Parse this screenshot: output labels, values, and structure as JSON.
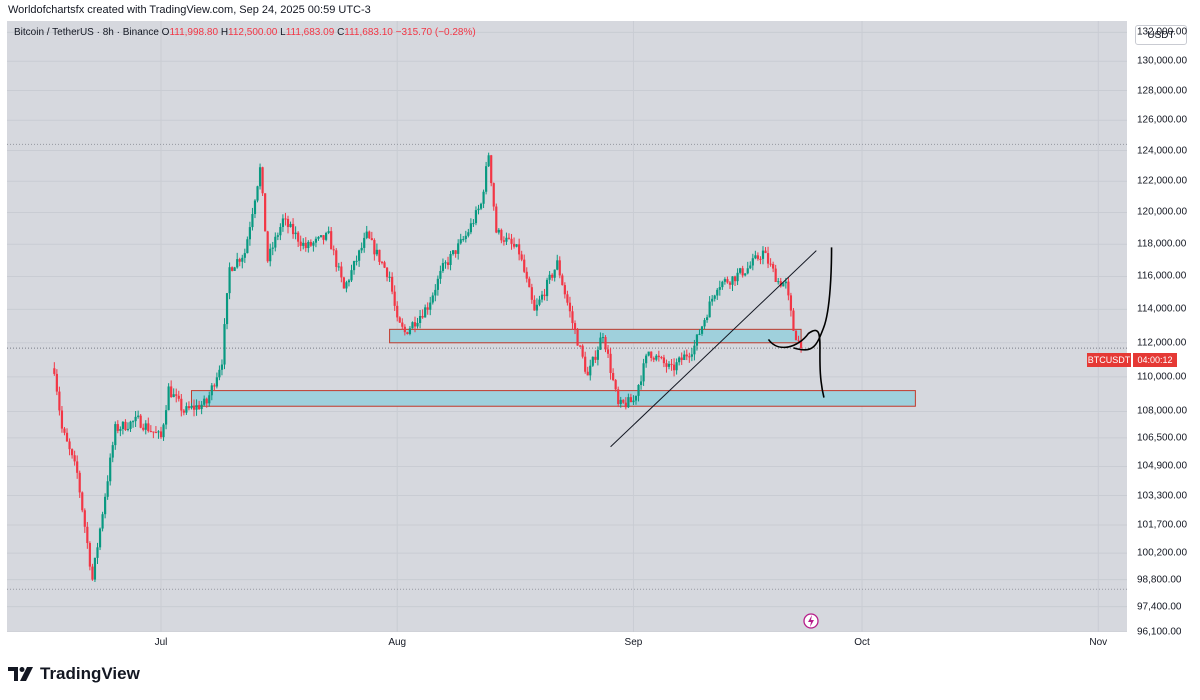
{
  "caption": "Worldofchartsfx created with TradingView.com, Sep 24, 2025 00:59 UTC-3",
  "legend": {
    "symbol": "Bitcoin / TetherUS · 8h · Binance",
    "o_label": "O",
    "o_value": "111,998.80",
    "h_label": "H",
    "h_value": "112,500.00",
    "l_label": "L",
    "l_value": "111,683.09",
    "c_label": "C",
    "c_value": "111,683.10",
    "change": "−315.70 (−0.28%)"
  },
  "currency_button": "USDT",
  "price_tag": {
    "symbol": "BTCUSDT",
    "countdown": "04:00:12"
  },
  "footer_brand": "TradingView",
  "colors": {
    "up": "#089981",
    "down": "#f23645",
    "zone_fill": "#9fd0dc",
    "zone_border": "#c0392b",
    "background": "#d6d8de"
  },
  "chart_data": {
    "type": "candlestick",
    "symbol": "BTCUSDT",
    "y_ticks": [
      "132,000.00",
      "130,000.00",
      "128,000.00",
      "126,000.00",
      "124,000.00",
      "122,000.00",
      "120,000.00",
      "118,000.00",
      "116,000.00",
      "114,000.00",
      "112,000.00",
      "110,000.00",
      "108,000.00",
      "106,500.00",
      "104,900.00",
      "103,300.00",
      "101,700.00",
      "100,200.00",
      "98,800.00",
      "97,400.00",
      "96,100.00"
    ],
    "x_ticks": [
      "Jul",
      "Aug",
      "Sep",
      "Oct",
      "Nov"
    ],
    "ylim": [
      96100,
      132800
    ],
    "scale": "log",
    "last_price": 111683.1,
    "high_line": 124400,
    "low_line": 98300,
    "anchors": [
      {
        "date": "2025-06-17",
        "price": 110500
      },
      {
        "date": "2025-06-18",
        "price": 107000
      },
      {
        "date": "2025-06-20",
        "price": 104500
      },
      {
        "date": "2025-06-22",
        "price": 98800
      },
      {
        "date": "2025-06-23",
        "price": 101500
      },
      {
        "date": "2025-06-25",
        "price": 107000
      },
      {
        "date": "2025-06-28",
        "price": 107500
      },
      {
        "date": "2025-07-01",
        "price": 106500
      },
      {
        "date": "2025-07-02",
        "price": 109300
      },
      {
        "date": "2025-07-04",
        "price": 108000
      },
      {
        "date": "2025-07-07",
        "price": 108500
      },
      {
        "date": "2025-07-09",
        "price": 111000
      },
      {
        "date": "2025-07-10",
        "price": 116500
      },
      {
        "date": "2025-07-12",
        "price": 117500
      },
      {
        "date": "2025-07-14",
        "price": 122800
      },
      {
        "date": "2025-07-15",
        "price": 117000
      },
      {
        "date": "2025-07-17",
        "price": 119500
      },
      {
        "date": "2025-07-20",
        "price": 117800
      },
      {
        "date": "2025-07-23",
        "price": 118500
      },
      {
        "date": "2025-07-25",
        "price": 115200
      },
      {
        "date": "2025-07-28",
        "price": 118500
      },
      {
        "date": "2025-07-31",
        "price": 116000
      },
      {
        "date": "2025-08-01",
        "price": 113200
      },
      {
        "date": "2025-08-02",
        "price": 112600
      },
      {
        "date": "2025-08-05",
        "price": 114200
      },
      {
        "date": "2025-08-07",
        "price": 116500
      },
      {
        "date": "2025-08-10",
        "price": 118500
      },
      {
        "date": "2025-08-12",
        "price": 120500
      },
      {
        "date": "2025-08-13",
        "price": 123800
      },
      {
        "date": "2025-08-14",
        "price": 118800
      },
      {
        "date": "2025-08-17",
        "price": 117500
      },
      {
        "date": "2025-08-19",
        "price": 113800
      },
      {
        "date": "2025-08-22",
        "price": 116800
      },
      {
        "date": "2025-08-24",
        "price": 113200
      },
      {
        "date": "2025-08-26",
        "price": 110000
      },
      {
        "date": "2025-08-28",
        "price": 112600
      },
      {
        "date": "2025-08-30",
        "price": 108300
      },
      {
        "date": "2025-09-01",
        "price": 108600
      },
      {
        "date": "2025-09-03",
        "price": 111500
      },
      {
        "date": "2025-09-06",
        "price": 110400
      },
      {
        "date": "2025-09-09",
        "price": 111800
      },
      {
        "date": "2025-09-12",
        "price": 115500
      },
      {
        "date": "2025-09-14",
        "price": 115900
      },
      {
        "date": "2025-09-16",
        "price": 116500
      },
      {
        "date": "2025-09-18",
        "price": 117500
      },
      {
        "date": "2025-09-20",
        "price": 115700
      },
      {
        "date": "2025-09-21",
        "price": 115500
      },
      {
        "date": "2025-09-22",
        "price": 112800
      },
      {
        "date": "2025-09-23",
        "price": 111700
      }
    ],
    "zones": [
      {
        "from": "2025-07-31",
        "to": "2025-09-23",
        "low": 112000,
        "high": 112800
      },
      {
        "from": "2025-07-05",
        "to": "2025-10-08",
        "low": 108300,
        "high": 109200
      }
    ],
    "trendline": {
      "from": {
        "date": "2025-08-29",
        "price": 106000
      },
      "to": {
        "date": "2025-09-25",
        "price": 117600
      }
    },
    "drawings": [
      {
        "kind": "arrow-up",
        "from": {
          "date": "2025-09-22",
          "price": 111700
        },
        "to": {
          "date": "2025-09-27",
          "price": 117800
        }
      },
      {
        "kind": "arrow-down",
        "from": {
          "date": "2025-09-22",
          "price": 112200
        },
        "to": {
          "date": "2025-09-26",
          "price": 108800
        }
      }
    ]
  }
}
